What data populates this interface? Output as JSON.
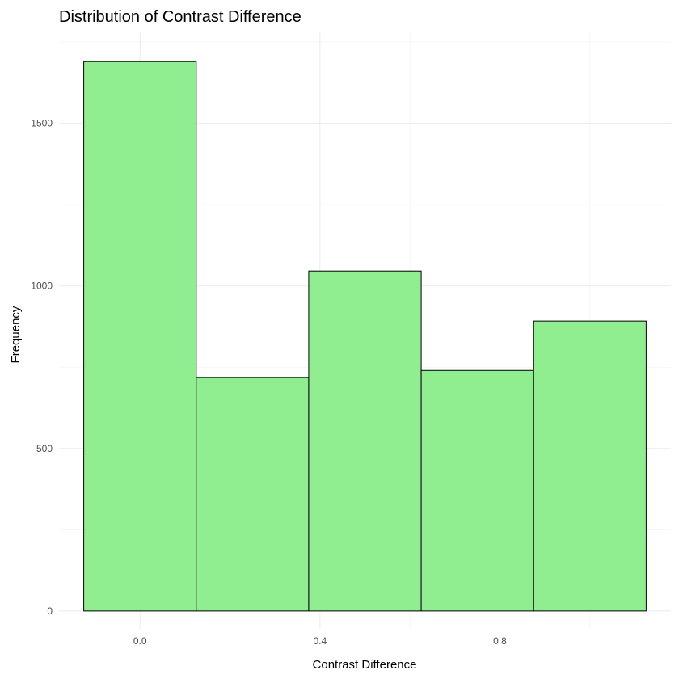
{
  "chart_data": {
    "type": "bar",
    "title": "Distribution of Contrast Difference",
    "xlabel": "Contrast Difference",
    "ylabel": "Frequency",
    "bins": [
      {
        "start": -0.125,
        "end": 0.125,
        "count": 1690
      },
      {
        "start": 0.125,
        "end": 0.375,
        "count": 718
      },
      {
        "start": 0.375,
        "end": 0.625,
        "count": 1046
      },
      {
        "start": 0.625,
        "end": 0.875,
        "count": 740
      },
      {
        "start": 0.875,
        "end": 1.125,
        "count": 892
      }
    ],
    "xlim": [
      -0.18,
      1.18
    ],
    "ylim": [
      -55,
      1780
    ],
    "x_ticks": [
      0.0,
      0.4,
      0.8
    ],
    "x_tick_labels": [
      "0.0",
      "0.4",
      "0.8"
    ],
    "y_ticks": [
      0,
      500,
      1000,
      1500
    ],
    "y_tick_labels": [
      "0",
      "500",
      "1000",
      "1500"
    ],
    "grid": true,
    "legend": "none",
    "colors": {
      "bar_fill": "#90ee90",
      "bar_stroke": "#000000",
      "grid": "#ebebeb"
    }
  }
}
